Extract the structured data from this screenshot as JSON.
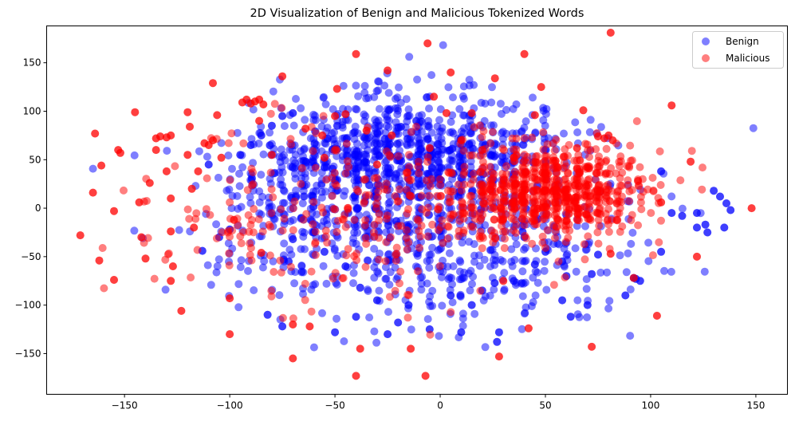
{
  "chart_data": {
    "type": "scatter",
    "title": "2D Visualization of Benign and Malicious Tokenized Words",
    "xlabel": "",
    "ylabel": "",
    "xlim": [
      -187,
      165
    ],
    "ylim": [
      -192,
      188
    ],
    "xticks": [
      -150,
      -100,
      -50,
      0,
      50,
      100,
      150
    ],
    "xtick_labels": [
      "−150",
      "−100",
      "−50",
      "0",
      "50",
      "100",
      "150"
    ],
    "yticks": [
      -150,
      -100,
      -50,
      0,
      50,
      100,
      150
    ],
    "ytick_labels": [
      "−150",
      "−100",
      "−50",
      "0",
      "50",
      "100",
      "150"
    ],
    "grid": false,
    "legend_position": "upper right",
    "legend": [
      {
        "label": "Benign",
        "color": "#0000ff"
      },
      {
        "label": "Malicious",
        "color": "#ff0000"
      }
    ],
    "series": [
      {
        "name": "Benign",
        "color": "#0000ff",
        "alpha": 0.5,
        "clusters": [
          {
            "cx": -10,
            "cy": 60,
            "sx": 35,
            "sy": 30,
            "n": 700,
            "seed": 11
          },
          {
            "cx": -25,
            "cy": -20,
            "sx": 45,
            "sy": 45,
            "n": 450,
            "seed": 12
          },
          {
            "cx": 30,
            "cy": -40,
            "sx": 35,
            "sy": 40,
            "n": 220,
            "seed": 13
          },
          {
            "cx": -60,
            "cy": 40,
            "sx": 22,
            "sy": 40,
            "n": 160,
            "seed": 14
          }
        ],
        "points": [
          [
            105,
            38
          ],
          [
            105,
            -45
          ],
          [
            110,
            -5
          ],
          [
            115,
            -8
          ],
          [
            122,
            -5
          ],
          [
            126,
            -17
          ],
          [
            130,
            18
          ],
          [
            133,
            12
          ],
          [
            136,
            5
          ],
          [
            138,
            -2
          ],
          [
            135,
            -20
          ],
          [
            127,
            -25
          ],
          [
            122,
            -20
          ],
          [
            92,
            -72
          ],
          [
            95,
            -75
          ],
          [
            93,
            -73
          ],
          [
            88,
            -90
          ],
          [
            75,
            -48
          ],
          [
            72,
            -68
          ],
          [
            70,
            -100
          ],
          [
            60,
            -70
          ],
          [
            58,
            -55
          ],
          [
            58,
            -95
          ],
          [
            62,
            -112
          ],
          [
            28,
            -128
          ],
          [
            27,
            -138
          ],
          [
            10,
            -128
          ],
          [
            -5,
            -125
          ],
          [
            -25,
            -130
          ],
          [
            -50,
            -128
          ],
          [
            -75,
            -122
          ],
          [
            -82,
            -110
          ],
          [
            -40,
            -112
          ],
          [
            -20,
            -118
          ],
          [
            -110,
            45
          ],
          [
            -113,
            -44
          ],
          [
            -105,
            -30
          ],
          [
            -100,
            -22
          ],
          [
            -70,
            -32
          ],
          [
            -72,
            -55
          ],
          [
            -95,
            55
          ],
          [
            -90,
            65
          ],
          [
            -85,
            75
          ],
          [
            -80,
            85
          ],
          [
            -75,
            95
          ],
          [
            -70,
            98
          ],
          [
            -66,
            -10
          ],
          [
            -60,
            -25
          ],
          [
            -55,
            -45
          ],
          [
            -45,
            -60
          ],
          [
            -38,
            -82
          ],
          [
            -30,
            -95
          ],
          [
            -15,
            -100
          ],
          [
            5,
            -90
          ],
          [
            15,
            -100
          ],
          [
            20,
            -85
          ],
          [
            35,
            -75
          ],
          [
            45,
            -58
          ],
          [
            50,
            -45
          ],
          [
            40,
            -30
          ]
        ]
      },
      {
        "name": "Malicious",
        "color": "#ff0000",
        "alpha": 0.5,
        "clusters": [
          {
            "cx": 55,
            "cy": 18,
            "sx": 22,
            "sy": 24,
            "n": 650,
            "seed": 21
          },
          {
            "cx": 15,
            "cy": 10,
            "sx": 25,
            "sy": 25,
            "n": 120,
            "seed": 22
          },
          {
            "cx": -30,
            "cy": -15,
            "sx": 40,
            "sy": 40,
            "n": 160,
            "seed": 23
          },
          {
            "cx": -90,
            "cy": 0,
            "sx": 30,
            "sy": 45,
            "n": 90,
            "seed": 24
          }
        ],
        "points": [
          [
            -171,
            -28
          ],
          [
            -165,
            16
          ],
          [
            -164,
            77
          ],
          [
            -162,
            -54
          ],
          [
            -161,
            44
          ],
          [
            -155,
            -74
          ],
          [
            -155,
            -3
          ],
          [
            -153,
            60
          ],
          [
            -152,
            57
          ],
          [
            -145,
            99
          ],
          [
            -143,
            6
          ],
          [
            -142,
            -30
          ],
          [
            -140,
            -52
          ],
          [
            -138,
            26
          ],
          [
            -135,
            72
          ],
          [
            -135,
            60
          ],
          [
            -133,
            74
          ],
          [
            -130,
            73
          ],
          [
            -128,
            75
          ],
          [
            -130,
            38
          ],
          [
            -128,
            10
          ],
          [
            -128,
            -24
          ],
          [
            -127,
            -60
          ],
          [
            -128,
            -75
          ],
          [
            -123,
            -106
          ],
          [
            -120,
            99
          ],
          [
            -120,
            55
          ],
          [
            -119,
            84
          ],
          [
            -118,
            20
          ],
          [
            -117,
            -20
          ],
          [
            -115,
            38
          ],
          [
            -112,
            67
          ],
          [
            -110,
            65
          ],
          [
            -108,
            70
          ],
          [
            -108,
            129
          ],
          [
            -106,
            96
          ],
          [
            -104,
            52
          ],
          [
            -100,
            -130
          ],
          [
            -100,
            -93
          ],
          [
            -98,
            -12
          ],
          [
            -94,
            109
          ],
          [
            -92,
            112
          ],
          [
            -90,
            108
          ],
          [
            -88,
            110
          ],
          [
            -86,
            112
          ],
          [
            -84,
            107
          ],
          [
            -86,
            90
          ],
          [
            -85,
            -46
          ],
          [
            -80,
            55
          ],
          [
            -75,
            136
          ],
          [
            -70,
            -120
          ],
          [
            -70,
            -155
          ],
          [
            -62,
            -122
          ],
          [
            -64,
            82
          ],
          [
            -56,
            75
          ],
          [
            -55,
            52
          ],
          [
            -50,
            95
          ],
          [
            -49,
            123
          ],
          [
            -45,
            97
          ],
          [
            -40,
            159
          ],
          [
            -38,
            -145
          ],
          [
            -40,
            -173
          ],
          [
            -35,
            80
          ],
          [
            -30,
            45
          ],
          [
            -25,
            142
          ],
          [
            -23,
            75
          ],
          [
            -14,
            -145
          ],
          [
            -7,
            -173
          ],
          [
            -6,
            170
          ],
          [
            -5,
            62
          ],
          [
            -3,
            115
          ],
          [
            3,
            98
          ],
          [
            5,
            140
          ],
          [
            10,
            70
          ],
          [
            15,
            98
          ],
          [
            20,
            60
          ],
          [
            26,
            134
          ],
          [
            28,
            -153
          ],
          [
            30,
            -75
          ],
          [
            35,
            52
          ],
          [
            40,
            159
          ],
          [
            42,
            -124
          ],
          [
            45,
            96
          ],
          [
            48,
            125
          ],
          [
            65,
            62
          ],
          [
            68,
            101
          ],
          [
            72,
            -143
          ],
          [
            75,
            74
          ],
          [
            78,
            72
          ],
          [
            80,
            75
          ],
          [
            81,
            181
          ],
          [
            82,
            70
          ],
          [
            81,
            -47
          ],
          [
            92,
            -72
          ],
          [
            94,
            28
          ],
          [
            103,
            -111
          ],
          [
            105,
            6
          ],
          [
            110,
            106
          ],
          [
            119,
            48
          ],
          [
            122,
            -50
          ],
          [
            148,
            0
          ]
        ]
      }
    ]
  }
}
